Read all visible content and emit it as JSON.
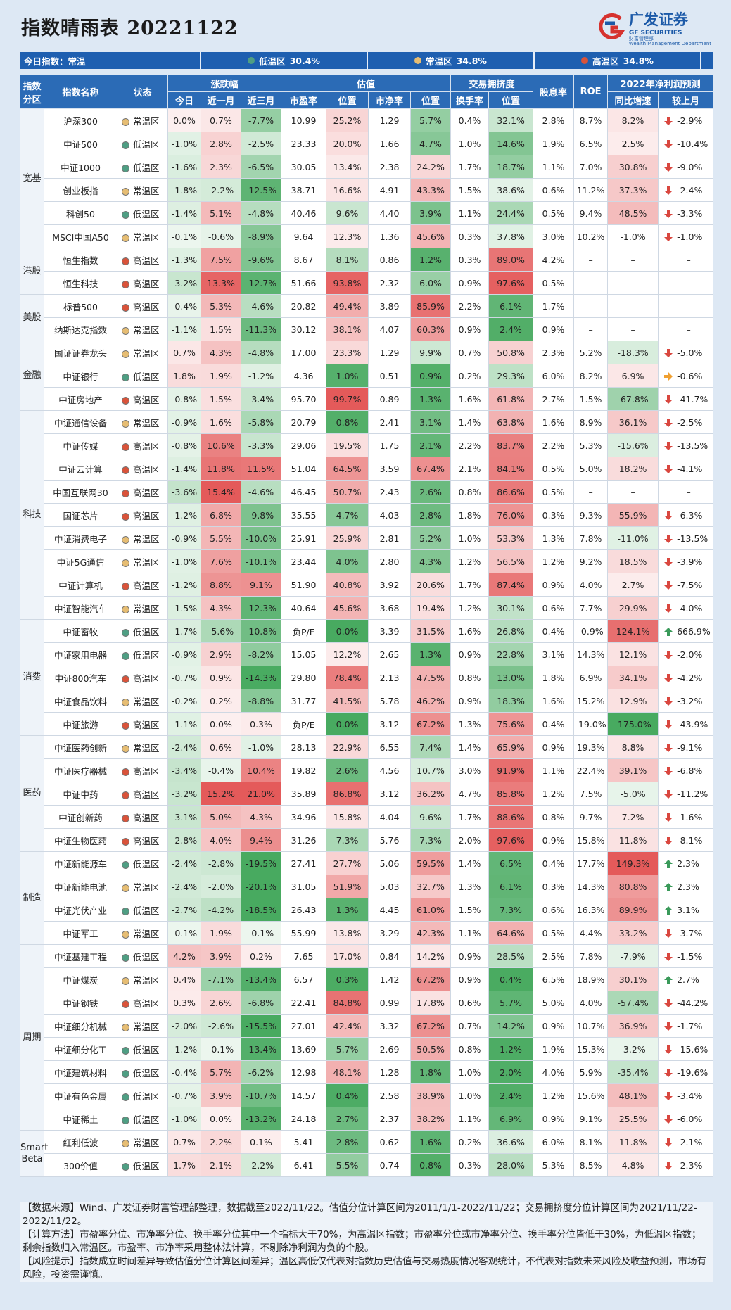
{
  "header": {
    "title": "指数晴雨表 20221122",
    "logo": {
      "cn": "广发证券",
      "en": "GF SECURITIES",
      "sub_cn": "财富管理部",
      "sub_en": "Wealth Management Department"
    }
  },
  "summary": {
    "label": "今日指数：常温",
    "zones": [
      {
        "label": "低温区",
        "value": "30.4%",
        "color": "#4f9e83"
      },
      {
        "label": "常温区",
        "value": "34.8%",
        "color": "#e6bd73"
      },
      {
        "label": "高温区",
        "value": "34.8%",
        "color": "#d9533a"
      }
    ]
  },
  "table": {
    "head": {
      "sector": "指数分区",
      "name": "指数名称",
      "status": "状态",
      "ret": "涨跌幅",
      "val": "估值",
      "crowd": "交易拥挤度",
      "div": "股息率",
      "roe": "ROE",
      "forecast": "2022年净利润预测",
      "today": "今日",
      "m1": "近一月",
      "m3": "近三月",
      "pe": "市盈率",
      "pe_pos": "位置",
      "pb": "市净率",
      "pb_pos": "位置",
      "turn": "换手率",
      "turn_pos": "位置",
      "yoy": "同比增速",
      "mom": "较上月"
    },
    "groups": [
      {
        "name": "宽基",
        "rows": [
          [
            "沪深300",
            "常温区",
            "0.0%",
            "0.7%",
            "-7.7%",
            "10.99",
            "25.2%",
            "1.29",
            "5.7%",
            "0.4%",
            "32.1%",
            "2.8%",
            "8.7%",
            "8.2%",
            "-2.9%"
          ],
          [
            "中证500",
            "低温区",
            "-1.0%",
            "2.8%",
            "-2.5%",
            "23.33",
            "20.0%",
            "1.66",
            "4.7%",
            "1.0%",
            "14.6%",
            "1.9%",
            "6.5%",
            "2.5%",
            "-10.4%"
          ],
          [
            "中证1000",
            "低温区",
            "-1.6%",
            "2.3%",
            "-6.5%",
            "30.05",
            "13.4%",
            "2.38",
            "24.2%",
            "1.7%",
            "18.7%",
            "1.1%",
            "7.0%",
            "30.8%",
            "-9.0%"
          ],
          [
            "创业板指",
            "常温区",
            "-1.8%",
            "-2.2%",
            "-12.5%",
            "38.71",
            "16.6%",
            "4.91",
            "43.3%",
            "1.5%",
            "38.6%",
            "0.6%",
            "11.2%",
            "37.3%",
            "-2.4%"
          ],
          [
            "科创50",
            "低温区",
            "-1.4%",
            "5.1%",
            "-4.8%",
            "40.46",
            "9.6%",
            "4.40",
            "3.9%",
            "1.1%",
            "24.4%",
            "0.5%",
            "9.4%",
            "48.5%",
            "-3.3%"
          ],
          [
            "MSCI中国A50",
            "常温区",
            "-0.1%",
            "-0.6%",
            "-8.9%",
            "9.64",
            "12.3%",
            "1.36",
            "45.6%",
            "0.3%",
            "37.8%",
            "3.0%",
            "10.2%",
            "-1.0%",
            "-1.0%"
          ]
        ]
      },
      {
        "name": "港股",
        "rows": [
          [
            "恒生指数",
            "高温区",
            "-1.3%",
            "7.5%",
            "-9.6%",
            "8.67",
            "8.1%",
            "0.86",
            "1.2%",
            "0.3%",
            "89.0%",
            "4.2%",
            "–",
            "–",
            "–"
          ],
          [
            "恒生科技",
            "高温区",
            "-3.2%",
            "13.3%",
            "-12.7%",
            "51.66",
            "93.8%",
            "2.32",
            "6.0%",
            "0.9%",
            "97.6%",
            "0.5%",
            "–",
            "–",
            "–"
          ]
        ]
      },
      {
        "name": "美股",
        "rows": [
          [
            "标普500",
            "高温区",
            "-0.4%",
            "5.3%",
            "-4.6%",
            "20.82",
            "49.4%",
            "3.89",
            "85.9%",
            "2.2%",
            "6.1%",
            "1.7%",
            "–",
            "–",
            "–"
          ],
          [
            "纳斯达克指数",
            "常温区",
            "-1.1%",
            "1.5%",
            "-11.3%",
            "30.12",
            "38.1%",
            "4.07",
            "60.3%",
            "0.9%",
            "2.4%",
            "0.9%",
            "–",
            "–",
            "–"
          ]
        ]
      },
      {
        "name": "金融",
        "rows": [
          [
            "国证证券龙头",
            "常温区",
            "0.7%",
            "4.3%",
            "-4.8%",
            "17.00",
            "23.3%",
            "1.29",
            "9.9%",
            "0.7%",
            "50.8%",
            "2.3%",
            "5.2%",
            "-18.3%",
            "-5.0%"
          ],
          [
            "中证银行",
            "低温区",
            "1.8%",
            "1.9%",
            "-1.2%",
            "4.36",
            "1.0%",
            "0.51",
            "0.9%",
            "0.2%",
            "29.3%",
            "6.0%",
            "8.2%",
            "6.9%",
            "-0.6%"
          ],
          [
            "中证房地产",
            "高温区",
            "-0.8%",
            "1.5%",
            "-3.4%",
            "95.70",
            "99.7%",
            "0.89",
            "1.3%",
            "1.6%",
            "61.8%",
            "2.7%",
            "1.5%",
            "-67.8%",
            "-41.7%"
          ]
        ]
      },
      {
        "name": "科技",
        "rows": [
          [
            "中证通信设备",
            "常温区",
            "-0.9%",
            "1.6%",
            "-5.8%",
            "20.79",
            "0.8%",
            "2.41",
            "3.1%",
            "1.4%",
            "63.8%",
            "1.6%",
            "8.9%",
            "36.1%",
            "-2.5%"
          ],
          [
            "中证传媒",
            "高温区",
            "-0.8%",
            "10.6%",
            "-3.3%",
            "29.06",
            "19.5%",
            "1.75",
            "2.1%",
            "2.2%",
            "83.7%",
            "2.2%",
            "5.3%",
            "-15.6%",
            "-13.5%"
          ],
          [
            "中证云计算",
            "高温区",
            "-1.4%",
            "11.8%",
            "11.5%",
            "51.04",
            "64.5%",
            "3.59",
            "67.4%",
            "2.1%",
            "84.1%",
            "0.5%",
            "5.0%",
            "18.2%",
            "-4.1%"
          ],
          [
            "中国互联网30",
            "高温区",
            "-3.6%",
            "15.4%",
            "-4.6%",
            "46.45",
            "50.7%",
            "2.43",
            "2.6%",
            "0.8%",
            "86.6%",
            "0.5%",
            "–",
            "–",
            "–"
          ],
          [
            "国证芯片",
            "高温区",
            "-1.2%",
            "6.8%",
            "-9.8%",
            "35.55",
            "4.7%",
            "4.03",
            "2.8%",
            "1.8%",
            "76.0%",
            "0.3%",
            "9.3%",
            "55.9%",
            "-6.3%"
          ],
          [
            "中证消费电子",
            "常温区",
            "-0.9%",
            "5.5%",
            "-10.0%",
            "25.91",
            "25.9%",
            "2.81",
            "5.2%",
            "1.0%",
            "53.3%",
            "1.3%",
            "7.8%",
            "-11.0%",
            "-13.5%"
          ],
          [
            "中证5G通信",
            "常温区",
            "-1.0%",
            "7.6%",
            "-10.1%",
            "23.44",
            "4.0%",
            "2.80",
            "4.3%",
            "1.2%",
            "56.5%",
            "1.2%",
            "9.2%",
            "18.5%",
            "-3.9%"
          ],
          [
            "中证计算机",
            "高温区",
            "-1.2%",
            "8.8%",
            "9.1%",
            "51.90",
            "40.8%",
            "3.92",
            "20.6%",
            "1.7%",
            "87.4%",
            "0.9%",
            "4.0%",
            "2.7%",
            "-7.5%"
          ],
          [
            "中证智能汽车",
            "常温区",
            "-1.5%",
            "4.3%",
            "-12.3%",
            "40.64",
            "45.6%",
            "3.68",
            "19.4%",
            "1.2%",
            "30.1%",
            "0.6%",
            "7.7%",
            "29.9%",
            "-4.0%"
          ]
        ]
      },
      {
        "name": "消费",
        "rows": [
          [
            "中证畜牧",
            "低温区",
            "-1.7%",
            "-5.6%",
            "-10.8%",
            "负P/E",
            "0.0%",
            "3.39",
            "31.5%",
            "1.6%",
            "26.8%",
            "0.4%",
            "-0.9%",
            "124.1%",
            "666.9%"
          ],
          [
            "中证家用电器",
            "低温区",
            "-0.9%",
            "2.9%",
            "-8.2%",
            "15.05",
            "12.2%",
            "2.65",
            "1.3%",
            "0.9%",
            "22.8%",
            "3.1%",
            "14.3%",
            "12.1%",
            "-2.0%"
          ],
          [
            "中证800汽车",
            "高温区",
            "-0.7%",
            "0.9%",
            "-14.3%",
            "29.80",
            "78.4%",
            "2.13",
            "47.5%",
            "0.8%",
            "13.0%",
            "1.8%",
            "6.9%",
            "34.1%",
            "-4.2%"
          ],
          [
            "中证食品饮料",
            "常温区",
            "-0.2%",
            "0.2%",
            "-8.8%",
            "31.77",
            "41.5%",
            "5.78",
            "46.2%",
            "0.9%",
            "18.3%",
            "1.6%",
            "15.2%",
            "12.9%",
            "-3.2%"
          ],
          [
            "中证旅游",
            "高温区",
            "-1.1%",
            "0.0%",
            "0.3%",
            "负P/E",
            "0.0%",
            "3.12",
            "67.2%",
            "1.3%",
            "75.6%",
            "0.4%",
            "-19.0%",
            "-175.0%",
            "-43.9%"
          ]
        ]
      },
      {
        "name": "医药",
        "rows": [
          [
            "中证医药创新",
            "常温区",
            "-2.4%",
            "0.6%",
            "-1.0%",
            "28.13",
            "22.9%",
            "6.55",
            "7.4%",
            "1.4%",
            "65.9%",
            "0.9%",
            "19.3%",
            "8.8%",
            "-9.1%"
          ],
          [
            "中证医疗器械",
            "高温区",
            "-3.4%",
            "-0.4%",
            "10.4%",
            "19.82",
            "2.6%",
            "4.56",
            "10.7%",
            "3.0%",
            "91.9%",
            "1.1%",
            "22.4%",
            "39.1%",
            "-6.8%"
          ],
          [
            "中证中药",
            "高温区",
            "-3.2%",
            "15.2%",
            "21.0%",
            "35.89",
            "86.8%",
            "3.12",
            "36.2%",
            "4.7%",
            "85.8%",
            "1.2%",
            "7.5%",
            "-5.0%",
            "-11.2%"
          ],
          [
            "中证创新药",
            "高温区",
            "-3.1%",
            "5.0%",
            "4.3%",
            "34.96",
            "15.8%",
            "4.04",
            "9.6%",
            "1.7%",
            "88.6%",
            "0.8%",
            "9.7%",
            "7.2%",
            "-1.6%"
          ],
          [
            "中证生物医药",
            "高温区",
            "-2.8%",
            "4.0%",
            "9.4%",
            "31.26",
            "7.3%",
            "5.76",
            "7.3%",
            "2.0%",
            "97.6%",
            "0.9%",
            "15.8%",
            "11.8%",
            "-8.1%"
          ]
        ]
      },
      {
        "name": "制造",
        "rows": [
          [
            "中证新能源车",
            "低温区",
            "-2.4%",
            "-2.8%",
            "-19.5%",
            "27.41",
            "27.7%",
            "5.06",
            "59.5%",
            "1.4%",
            "6.5%",
            "0.4%",
            "17.7%",
            "149.3%",
            "2.3%"
          ],
          [
            "中证新能电池",
            "常温区",
            "-2.4%",
            "-2.0%",
            "-20.1%",
            "31.05",
            "51.9%",
            "5.03",
            "32.7%",
            "1.3%",
            "6.1%",
            "0.3%",
            "14.3%",
            "80.8%",
            "2.3%"
          ],
          [
            "中证光伏产业",
            "低温区",
            "-2.7%",
            "-4.2%",
            "-18.5%",
            "26.43",
            "1.3%",
            "4.45",
            "61.0%",
            "1.5%",
            "7.3%",
            "0.6%",
            "16.3%",
            "89.9%",
            "3.1%"
          ],
          [
            "中证军工",
            "常温区",
            "-0.1%",
            "1.9%",
            "-0.1%",
            "55.99",
            "13.8%",
            "3.29",
            "42.3%",
            "1.1%",
            "64.6%",
            "0.5%",
            "4.4%",
            "33.2%",
            "-3.7%"
          ]
        ]
      },
      {
        "name": "周期",
        "rows": [
          [
            "中证基建工程",
            "低温区",
            "4.2%",
            "3.9%",
            "0.2%",
            "7.65",
            "17.0%",
            "0.84",
            "14.2%",
            "0.9%",
            "28.5%",
            "2.5%",
            "7.8%",
            "-7.9%",
            "-1.5%"
          ],
          [
            "中证煤炭",
            "常温区",
            "0.4%",
            "-7.1%",
            "-13.4%",
            "6.57",
            "0.3%",
            "1.42",
            "67.2%",
            "0.9%",
            "0.4%",
            "6.5%",
            "18.9%",
            "30.1%",
            "2.7%"
          ],
          [
            "中证钢铁",
            "高温区",
            "0.3%",
            "2.6%",
            "-6.8%",
            "22.41",
            "84.8%",
            "0.99",
            "17.8%",
            "0.6%",
            "5.7%",
            "5.0%",
            "4.0%",
            "-57.4%",
            "-44.2%"
          ],
          [
            "中证细分机械",
            "常温区",
            "-2.0%",
            "-2.6%",
            "-15.5%",
            "27.01",
            "42.4%",
            "3.32",
            "67.2%",
            "0.7%",
            "14.2%",
            "0.9%",
            "10.7%",
            "36.9%",
            "-1.7%"
          ],
          [
            "中证细分化工",
            "低温区",
            "-1.2%",
            "-0.1%",
            "-13.4%",
            "13.69",
            "5.7%",
            "2.69",
            "50.5%",
            "0.8%",
            "1.2%",
            "1.9%",
            "15.3%",
            "-3.2%",
            "-15.6%"
          ],
          [
            "中证建筑材料",
            "低温区",
            "-0.4%",
            "5.7%",
            "-6.2%",
            "12.98",
            "48.1%",
            "1.28",
            "1.8%",
            "1.0%",
            "2.0%",
            "4.0%",
            "5.9%",
            "-35.4%",
            "-19.6%"
          ],
          [
            "中证有色金属",
            "低温区",
            "-0.7%",
            "3.9%",
            "-10.7%",
            "14.57",
            "0.4%",
            "2.58",
            "38.9%",
            "1.0%",
            "2.4%",
            "1.2%",
            "15.6%",
            "48.1%",
            "-3.4%"
          ],
          [
            "中证稀土",
            "低温区",
            "-1.0%",
            "0.0%",
            "-13.2%",
            "24.18",
            "2.7%",
            "2.37",
            "38.2%",
            "1.1%",
            "6.9%",
            "0.9%",
            "9.1%",
            "25.5%",
            "-6.0%"
          ]
        ]
      },
      {
        "name": "Smart Beta",
        "rows": [
          [
            "红利低波",
            "常温区",
            "0.7%",
            "2.2%",
            "0.1%",
            "5.41",
            "2.8%",
            "0.62",
            "1.6%",
            "0.2%",
            "36.6%",
            "6.0%",
            "8.1%",
            "11.8%",
            "-2.1%"
          ],
          [
            "300价值",
            "低温区",
            "1.7%",
            "2.1%",
            "-2.2%",
            "6.41",
            "5.5%",
            "0.74",
            "0.8%",
            "0.3%",
            "28.0%",
            "5.3%",
            "8.5%",
            "4.8%",
            "-2.3%"
          ]
        ]
      }
    ]
  },
  "notes": [
    "【数据来源】Wind、广发证券财富管理部整理，数据截至2022/11/22。估值分位计算区间为2011/1/1-2022/11/22；交易拥挤度分位计算区间为2021/11/22-2022/11/22。",
    "【计算方法】市盈率分位、市净率分位、换手率分位其中一个指标大于70%，为高温区指数；市盈率分位或市净率分位、换手率分位皆低于30%，为低温区指数；剩余指数归入常温区。市盈率、市净率采用整体法计算，不剔除净利润为负的个股。",
    "【风险提示】指数成立时间差异导致估值分位计算区间差异；温区高低仅代表对指数历史估值与交易热度情况客观统计，不代表对指数未来风险及收益预测，市场有风险，投资需谨慎。"
  ]
}
